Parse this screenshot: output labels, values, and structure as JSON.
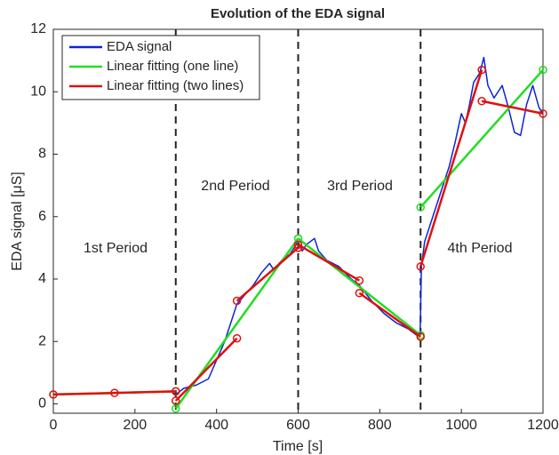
{
  "chart_data": {
    "type": "line",
    "title": "Evolution of the EDA signal",
    "x_label": "Time [s]",
    "y_label": "EDA signal [μS]",
    "xlim": [
      0,
      1200
    ],
    "ylim": [
      -0.3,
      12
    ],
    "xticks": [
      0,
      200,
      400,
      600,
      800,
      1000,
      1200
    ],
    "yticks": [
      0,
      2,
      4,
      6,
      8,
      10,
      12
    ],
    "legend": "upper left",
    "vlines": [
      300,
      600,
      900
    ],
    "annotations": [
      "1st Period",
      "2nd Period",
      "3rd Period",
      "4th Period"
    ],
    "series": [
      {
        "name": "EDA signal",
        "color": "#0b24d8",
        "markers": false,
        "x": [
          0,
          50,
          100,
          150,
          200,
          250,
          290,
          300,
          320,
          350,
          380,
          400,
          420,
          440,
          450,
          470,
          490,
          510,
          530,
          540,
          560,
          580,
          600,
          610,
          620,
          640,
          650,
          670,
          700,
          730,
          750,
          780,
          810,
          840,
          870,
          890,
          899,
          902,
          910,
          930,
          950,
          970,
          985,
          1000,
          1010,
          1020,
          1030,
          1045,
          1055,
          1065,
          1080,
          1100,
          1115,
          1130,
          1145,
          1160,
          1175,
          1190,
          1200
        ],
        "values": [
          0.3,
          0.32,
          0.33,
          0.35,
          0.36,
          0.38,
          0.4,
          0.3,
          0.5,
          0.6,
          0.8,
          1.4,
          2.0,
          2.8,
          3.2,
          3.5,
          3.8,
          4.2,
          4.5,
          4.3,
          4.6,
          4.8,
          5.2,
          4.9,
          5.1,
          5.3,
          4.9,
          4.6,
          4.4,
          4.0,
          3.8,
          3.3,
          2.9,
          2.6,
          2.4,
          2.2,
          2.3,
          4.4,
          5.2,
          6.0,
          6.8,
          7.6,
          8.4,
          9.3,
          9.0,
          9.6,
          10.3,
          10.6,
          11.1,
          10.2,
          9.8,
          10.2,
          9.5,
          8.7,
          8.6,
          9.6,
          10.2,
          9.5,
          9.3
        ]
      },
      {
        "name": "Linear fitting (one line)",
        "color": "#22dd22",
        "markers": true,
        "x": [
          0,
          300,
          300,
          300,
          600,
          600,
          600,
          900,
          900,
          900,
          1200
        ],
        "values": [
          0.3,
          0.4,
          null,
          -0.15,
          5.3,
          null,
          5.3,
          2.2,
          null,
          6.3,
          10.7
        ]
      },
      {
        "name": "Linear fitting (two lines)",
        "color": "#e01010",
        "markers": true,
        "x": [
          0,
          150,
          300,
          300,
          300,
          450,
          450,
          450,
          600,
          600,
          600,
          750,
          750,
          750,
          900,
          900,
          900,
          1050,
          1050,
          1050,
          1200
        ],
        "values": [
          0.3,
          0.35,
          0.4,
          null,
          0.1,
          2.1,
          null,
          3.3,
          5.0,
          null,
          5.1,
          3.95,
          null,
          3.55,
          2.15,
          null,
          4.4,
          10.7,
          null,
          9.7,
          9.3
        ]
      }
    ]
  }
}
